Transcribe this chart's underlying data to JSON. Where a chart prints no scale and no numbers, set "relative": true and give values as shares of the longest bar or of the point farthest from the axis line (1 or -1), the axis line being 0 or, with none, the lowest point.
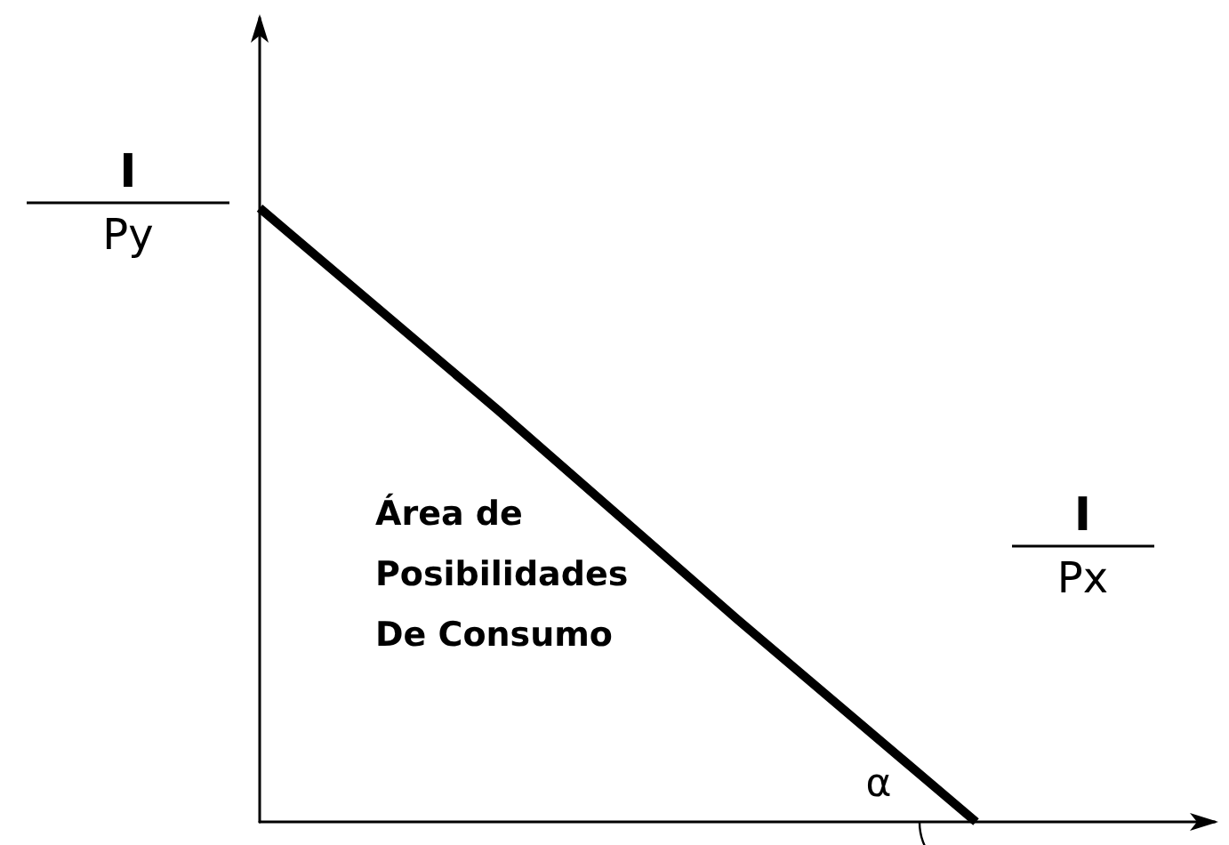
{
  "chart_data": {
    "type": "line",
    "relative": true,
    "categories": [
      null,
      null,
      null,
      null,
      null
    ],
    "values": [
      1,
      0.67,
      0.33,
      0,
      null
    ],
    "color": "#000000",
    "marker": "none",
    "annotations": [
      "I",
      "Py",
      "I",
      "Px",
      "Área de Posibilidades De Consumo",
      "α"
    ]
  }
}
